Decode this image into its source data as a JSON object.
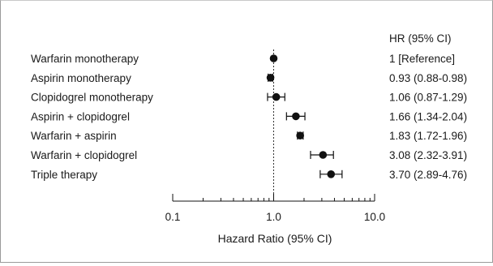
{
  "chart_data": {
    "type": "forest",
    "xlabel": "Hazard Ratio (95% CI)",
    "xscale": "log",
    "xlim": [
      0.1,
      10.0
    ],
    "xticks": [
      "0.1",
      "1.0",
      "10.0"
    ],
    "reference_line": 1.0,
    "hr_header": "HR (95% CI)",
    "rows": [
      {
        "label": "Warfarin monotherapy",
        "hr": 1.0,
        "lo": 1.0,
        "hi": 1.0,
        "text": "1 [Reference]"
      },
      {
        "label": "Aspirin monotherapy",
        "hr": 0.93,
        "lo": 0.88,
        "hi": 0.98,
        "text": "0.93 (0.88-0.98)"
      },
      {
        "label": "Clopidogrel monotherapy",
        "hr": 1.06,
        "lo": 0.87,
        "hi": 1.29,
        "text": "1.06 (0.87-1.29)"
      },
      {
        "label": "Aspirin + clopidogrel",
        "hr": 1.66,
        "lo": 1.34,
        "hi": 2.04,
        "text": "1.66 (1.34-2.04)"
      },
      {
        "label": "Warfarin + aspirin",
        "hr": 1.83,
        "lo": 1.72,
        "hi": 1.96,
        "text": "1.83 (1.72-1.96)"
      },
      {
        "label": "Warfarin + clopidogrel",
        "hr": 3.08,
        "lo": 2.32,
        "hi": 3.91,
        "text": "3.08 (2.32-3.91)"
      },
      {
        "label": "Triple therapy",
        "hr": 3.7,
        "lo": 2.89,
        "hi": 4.76,
        "text": "3.70 (2.89-4.76)"
      }
    ]
  }
}
